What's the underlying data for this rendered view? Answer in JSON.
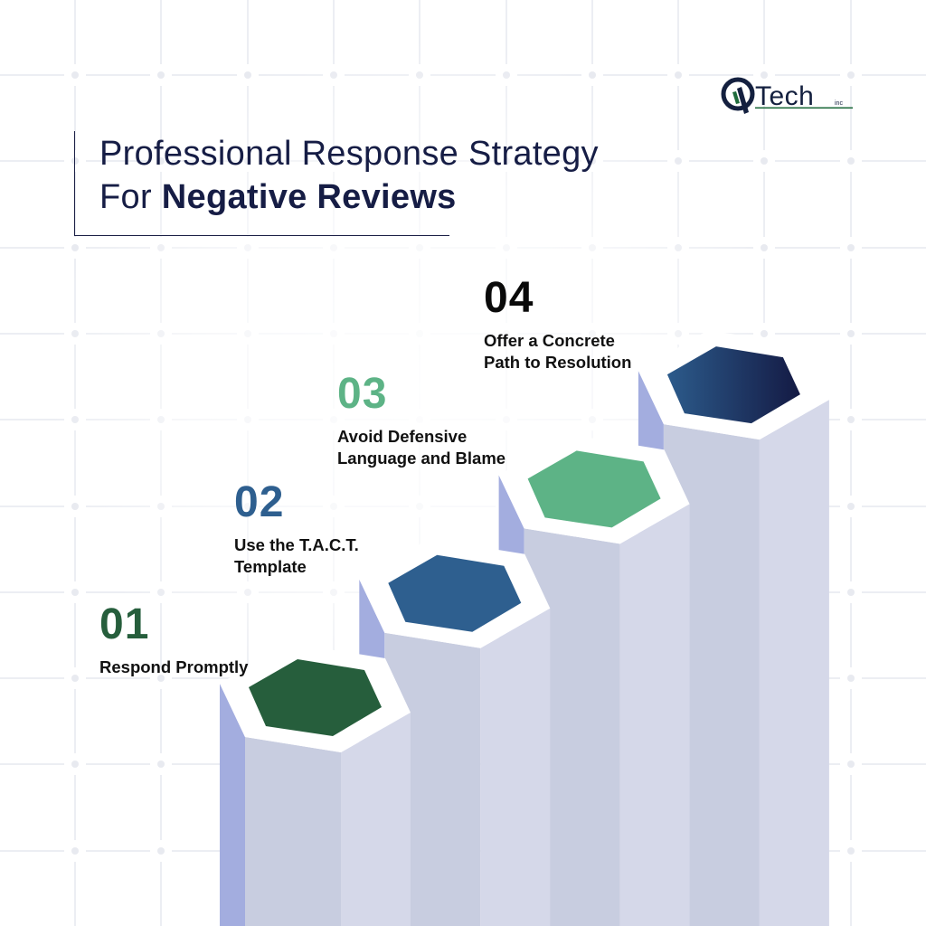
{
  "brand": {
    "logo_letter": "Q",
    "logo_text": "Tech",
    "logo_suffix": "inc"
  },
  "header": {
    "title_line1": "Professional Response Strategy",
    "title_line2_prefix": "For ",
    "title_line2_bold": "Negative Reviews"
  },
  "steps": [
    {
      "number": "01",
      "label_lines": [
        "Respond Promptly"
      ],
      "color": "#265e3c"
    },
    {
      "number": "02",
      "label_lines": [
        "Use the T.A.C.T.",
        "Template"
      ],
      "color": "#2e5f8f"
    },
    {
      "number": "03",
      "label_lines": [
        "Avoid Defensive",
        "Language and Blame"
      ],
      "color": "#5db386"
    },
    {
      "number": "04",
      "label_lines": [
        "Offer a Concrete",
        "Path to Resolution"
      ],
      "color": "#0a0a0a"
    }
  ],
  "colors": {
    "title": "#161d45",
    "face_left": "#a3addf",
    "face_front": "#c8cde0",
    "face_right": "#d5d8e9",
    "hex_01": "#265e3c",
    "hex_02": "#2e5f8f",
    "hex_03": "#5db386",
    "hex_04_start": "#2c5b8b",
    "hex_04_end": "#141a44",
    "grid": "#eceef3"
  }
}
